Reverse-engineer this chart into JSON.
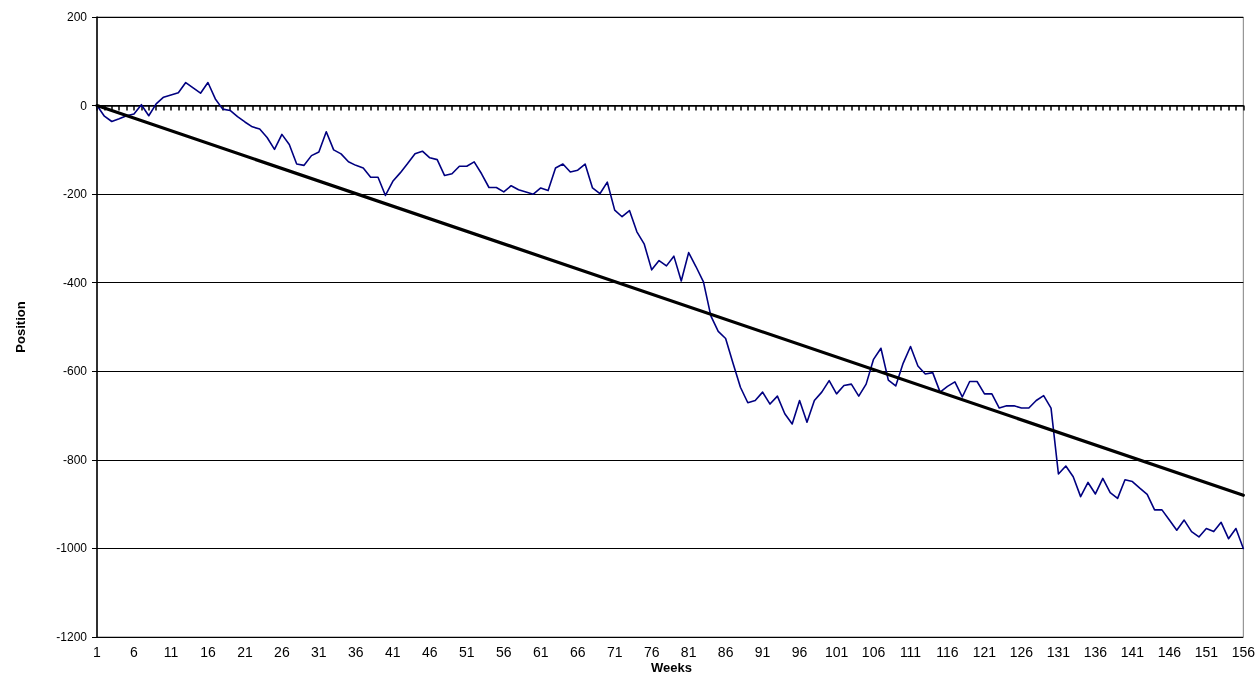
{
  "chart_data": {
    "type": "line",
    "xlabel": "Weeks",
    "ylabel": "Position",
    "x": [
      1,
      2,
      3,
      4,
      5,
      6,
      7,
      8,
      9,
      10,
      11,
      12,
      13,
      14,
      15,
      16,
      17,
      18,
      19,
      20,
      21,
      22,
      23,
      24,
      25,
      26,
      27,
      28,
      29,
      30,
      31,
      32,
      33,
      34,
      35,
      36,
      37,
      38,
      39,
      40,
      41,
      42,
      43,
      44,
      45,
      46,
      47,
      48,
      49,
      50,
      51,
      52,
      53,
      54,
      55,
      56,
      57,
      58,
      59,
      60,
      61,
      62,
      63,
      64,
      65,
      66,
      67,
      68,
      69,
      70,
      71,
      72,
      73,
      74,
      75,
      76,
      77,
      78,
      79,
      80,
      81,
      82,
      83,
      84,
      85,
      86,
      87,
      88,
      89,
      90,
      91,
      92,
      93,
      94,
      95,
      96,
      97,
      98,
      99,
      100,
      101,
      102,
      103,
      104,
      105,
      106,
      107,
      108,
      109,
      110,
      111,
      112,
      113,
      114,
      115,
      116,
      117,
      118,
      119,
      120,
      121,
      122,
      123,
      124,
      125,
      126,
      127,
      128,
      129,
      130,
      131,
      132,
      133,
      134,
      135,
      136,
      137,
      138,
      139,
      140,
      141,
      142,
      143,
      144,
      145,
      146,
      147,
      148,
      149,
      150,
      151,
      152,
      153,
      154,
      155,
      156
    ],
    "series": [
      {
        "color": "#000080",
        "values": [
          0,
          -24,
          -36,
          -30,
          -23,
          -19,
          2,
          -23,
          4,
          19,
          24,
          29,
          52,
          40,
          28,
          52,
          15,
          -8,
          -11,
          -25,
          -37,
          -48,
          -53,
          -72,
          -99,
          -65,
          -88,
          -132,
          -135,
          -113,
          -105,
          -59,
          -100,
          -109,
          -127,
          -135,
          -141,
          -162,
          -162,
          -203,
          -171,
          -152,
          -131,
          -109,
          -103,
          -118,
          -122,
          -158,
          -154,
          -137,
          -137,
          -127,
          -154,
          -185,
          -185,
          -195,
          -181,
          -190,
          -195,
          -200,
          -186,
          -192,
          -141,
          -132,
          -150,
          -146,
          -132,
          -186,
          -199,
          -173,
          -236,
          -251,
          -237,
          -285,
          -313,
          -371,
          -350,
          -362,
          -340,
          -396,
          -332,
          -364,
          -398,
          -475,
          -510,
          -526,
          -582,
          -636,
          -671,
          -666,
          -647,
          -674,
          -656,
          -696,
          -719,
          -666,
          -715,
          -666,
          -647,
          -621,
          -651,
          -632,
          -629,
          -656,
          -629,
          -573,
          -548,
          -620,
          -633,
          -582,
          -544,
          -588,
          -606,
          -603,
          -647,
          -634,
          -624,
          -658,
          -623,
          -623,
          -651,
          -651,
          -683,
          -678,
          -678,
          -683,
          -683,
          -666,
          -655,
          -683,
          -832,
          -814,
          -838,
          -883,
          -851,
          -877,
          -842,
          -874,
          -887,
          -845,
          -849,
          -864,
          -878,
          -913,
          -913,
          -936,
          -959,
          -936,
          -962,
          -974,
          -955,
          -962,
          -941,
          -978,
          -955,
          -1000
        ]
      },
      {
        "color": "#000000",
        "x": [
          1,
          156
        ],
        "values": [
          0,
          -880
        ]
      }
    ],
    "xlim": [
      1,
      156
    ],
    "xticks": [
      1,
      {
        "value": 2,
        "label": null
      },
      {
        "value": 3,
        "label": null
      },
      {
        "value": 4,
        "label": null
      },
      {
        "value": 5,
        "label": null
      },
      6,
      {
        "value": 7,
        "label": null
      },
      {
        "value": 8,
        "label": null
      },
      {
        "value": 9,
        "label": null
      },
      {
        "value": 10,
        "label": null
      },
      11,
      {
        "value": 12,
        "label": null
      },
      {
        "value": 13,
        "label": null
      },
      {
        "value": 14,
        "label": null
      },
      {
        "value": 15,
        "label": null
      },
      16,
      {
        "value": 17,
        "label": null
      },
      {
        "value": 18,
        "label": null
      },
      {
        "value": 19,
        "label": null
      },
      {
        "value": 20,
        "label": null
      },
      21,
      {
        "value": 22,
        "label": null
      },
      {
        "value": 23,
        "label": null
      },
      {
        "value": 24,
        "label": null
      },
      {
        "value": 25,
        "label": null
      },
      26,
      {
        "value": 27,
        "label": null
      },
      {
        "value": 28,
        "label": null
      },
      {
        "value": 29,
        "label": null
      },
      {
        "value": 30,
        "label": null
      },
      31,
      {
        "value": 32,
        "label": null
      },
      {
        "value": 33,
        "label": null
      },
      {
        "value": 34,
        "label": null
      },
      {
        "value": 35,
        "label": null
      },
      36,
      {
        "value": 37,
        "label": null
      },
      {
        "value": 38,
        "label": null
      },
      {
        "value": 39,
        "label": null
      },
      {
        "value": 40,
        "label": null
      },
      41,
      {
        "value": 42,
        "label": null
      },
      {
        "value": 43,
        "label": null
      },
      {
        "value": 44,
        "label": null
      },
      {
        "value": 45,
        "label": null
      },
      46,
      {
        "value": 47,
        "label": null
      },
      {
        "value": 48,
        "label": null
      },
      {
        "value": 49,
        "label": null
      },
      {
        "value": 50,
        "label": null
      },
      51,
      {
        "value": 52,
        "label": null
      },
      {
        "value": 53,
        "label": null
      },
      {
        "value": 54,
        "label": null
      },
      {
        "value": 55,
        "label": null
      },
      56,
      {
        "value": 57,
        "label": null
      },
      {
        "value": 58,
        "label": null
      },
      {
        "value": 59,
        "label": null
      },
      {
        "value": 60,
        "label": null
      },
      61,
      {
        "value": 62,
        "label": null
      },
      {
        "value": 63,
        "label": null
      },
      {
        "value": 64,
        "label": null
      },
      {
        "value": 65,
        "label": null
      },
      66,
      {
        "value": 67,
        "label": null
      },
      {
        "value": 68,
        "label": null
      },
      {
        "value": 69,
        "label": null
      },
      {
        "value": 70,
        "label": null
      },
      71,
      {
        "value": 72,
        "label": null
      },
      {
        "value": 73,
        "label": null
      },
      {
        "value": 74,
        "label": null
      },
      {
        "value": 75,
        "label": null
      },
      76,
      {
        "value": 77,
        "label": null
      },
      {
        "value": 78,
        "label": null
      },
      {
        "value": 79,
        "label": null
      },
      {
        "value": 80,
        "label": null
      },
      81,
      {
        "value": 82,
        "label": null
      },
      {
        "value": 83,
        "label": null
      },
      {
        "value": 84,
        "label": null
      },
      {
        "value": 85,
        "label": null
      },
      86,
      {
        "value": 87,
        "label": null
      },
      {
        "value": 88,
        "label": null
      },
      {
        "value": 89,
        "label": null
      },
      {
        "value": 90,
        "label": null
      },
      91,
      {
        "value": 92,
        "label": null
      },
      {
        "value": 93,
        "label": null
      },
      {
        "value": 94,
        "label": null
      },
      {
        "value": 95,
        "label": null
      },
      96,
      {
        "value": 97,
        "label": null
      },
      {
        "value": 98,
        "label": null
      },
      {
        "value": 99,
        "label": null
      },
      {
        "value": 100,
        "label": null
      },
      101,
      {
        "value": 102,
        "label": null
      },
      {
        "value": 103,
        "label": null
      },
      {
        "value": 104,
        "label": null
      },
      {
        "value": 105,
        "label": null
      },
      106,
      {
        "value": 107,
        "label": null
      },
      {
        "value": 108,
        "label": null
      },
      {
        "value": 109,
        "label": null
      },
      {
        "value": 110,
        "label": null
      },
      111,
      {
        "value": 112,
        "label": null
      },
      {
        "value": 113,
        "label": null
      },
      {
        "value": 114,
        "label": null
      },
      {
        "value": 115,
        "label": null
      },
      116,
      {
        "value": 117,
        "label": null
      },
      {
        "value": 118,
        "label": null
      },
      {
        "value": 119,
        "label": null
      },
      {
        "value": 120,
        "label": null
      },
      121,
      {
        "value": 122,
        "label": null
      },
      {
        "value": 123,
        "label": null
      },
      {
        "value": 124,
        "label": null
      },
      {
        "value": 125,
        "label": null
      },
      126,
      {
        "value": 127,
        "label": null
      },
      {
        "value": 128,
        "label": null
      },
      {
        "value": 129,
        "label": null
      },
      {
        "value": 130,
        "label": null
      },
      131,
      {
        "value": 132,
        "label": null
      },
      {
        "value": 133,
        "label": null
      },
      {
        "value": 134,
        "label": null
      },
      {
        "value": 135,
        "label": null
      },
      136,
      {
        "value": 137,
        "label": null
      },
      {
        "value": 138,
        "label": null
      },
      {
        "value": 139,
        "label": null
      },
      {
        "value": 140,
        "label": null
      },
      141,
      {
        "value": 142,
        "label": null
      },
      {
        "value": 143,
        "label": null
      },
      {
        "value": 144,
        "label": null
      },
      {
        "value": 145,
        "label": null
      },
      146,
      {
        "value": 147,
        "label": null
      },
      {
        "value": 148,
        "label": null
      },
      {
        "value": 149,
        "label": null
      },
      {
        "value": 150,
        "label": null
      },
      151,
      {
        "value": 152,
        "label": null
      },
      {
        "value": 153,
        "label": null
      },
      {
        "value": 154,
        "label": null
      },
      {
        "value": 155,
        "label": null
      },
      156
    ],
    "ylim": [
      -1200,
      200
    ],
    "yticks": [
      -1200,
      -1000,
      -800,
      -600,
      -400,
      -200,
      0,
      200
    ],
    "grid": "y"
  }
}
